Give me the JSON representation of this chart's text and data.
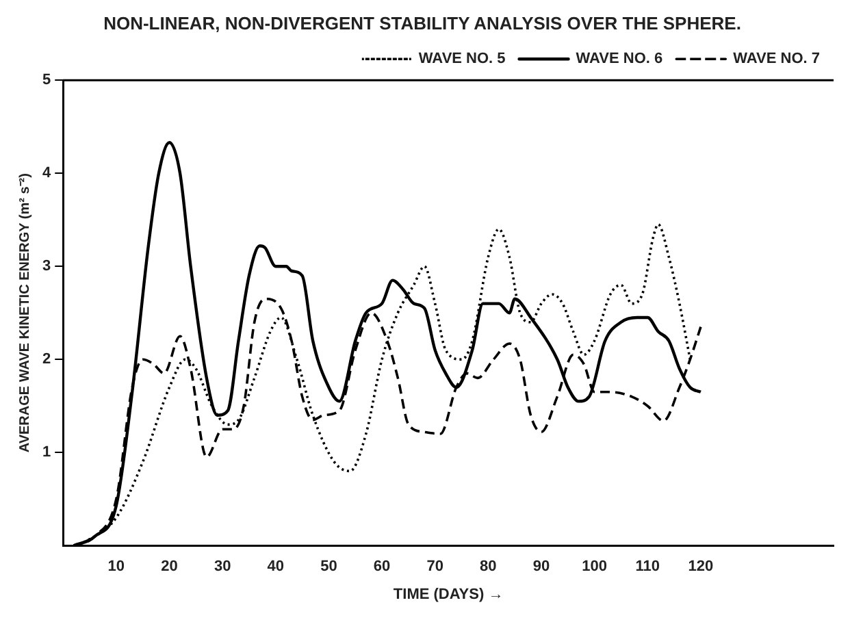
{
  "chart_data": {
    "type": "line",
    "title": "NON-LINEAR, NON-DIVERGENT STABILITY ANALYSIS OVER THE SPHERE.",
    "xlabel": "TIME (DAYS) →",
    "ylabel": "AVERAGE WAVE KINETIC ENERGY (m² s⁻²)",
    "xlim": [
      0,
      145
    ],
    "ylim": [
      0,
      5
    ],
    "xticks": [
      10,
      20,
      30,
      40,
      50,
      60,
      70,
      80,
      90,
      100,
      110,
      120
    ],
    "yticks": [
      1,
      2,
      3,
      4,
      5
    ],
    "grid": false,
    "legend": "top right",
    "marker": "none",
    "series": [
      {
        "name": "WAVE NO. 5",
        "color": "#000000",
        "line_style": "dotted",
        "x": [
          3,
          10,
          15,
          20,
          23,
          25,
          28,
          31,
          33,
          36,
          39,
          41,
          44,
          47,
          51,
          54,
          57,
          60,
          63,
          66,
          68,
          70,
          72,
          75,
          77,
          80,
          82,
          84,
          86,
          88,
          90,
          92,
          94,
          96,
          98,
          100,
          103,
          105,
          107,
          109,
          111,
          112,
          114,
          116,
          118
        ],
        "values": [
          0,
          0.3,
          0.9,
          1.7,
          2.0,
          1.9,
          1.5,
          1.3,
          1.35,
          1.8,
          2.3,
          2.45,
          2.0,
          1.4,
          0.9,
          0.8,
          1.2,
          2.0,
          2.5,
          2.8,
          3.0,
          2.6,
          2.1,
          2.0,
          2.2,
          3.1,
          3.4,
          3.1,
          2.5,
          2.4,
          2.6,
          2.7,
          2.6,
          2.3,
          2.05,
          2.2,
          2.7,
          2.8,
          2.6,
          2.7,
          3.3,
          3.45,
          3.1,
          2.6,
          2.0
        ]
      },
      {
        "name": "WAVE NO. 6",
        "color": "#000000",
        "line_style": "solid",
        "x": [
          2,
          6,
          10,
          13,
          16,
          18,
          20,
          22,
          24,
          27,
          29,
          31,
          33,
          35,
          37,
          38,
          40,
          42,
          43,
          45,
          47,
          50,
          52,
          55,
          57,
          60,
          62,
          64,
          66,
          68,
          70,
          72,
          74,
          77,
          79,
          82,
          84,
          85,
          88,
          93,
          95,
          97,
          99,
          102,
          105,
          108,
          110,
          112,
          114,
          116,
          118,
          120
        ],
        "values": [
          0,
          0.1,
          0.43,
          1.65,
          3.2,
          4.0,
          4.33,
          4.0,
          3.0,
          1.8,
          1.4,
          1.45,
          2.2,
          2.9,
          3.22,
          3.2,
          3.0,
          3.0,
          2.95,
          2.9,
          2.2,
          1.7,
          1.55,
          2.2,
          2.5,
          2.6,
          2.85,
          2.75,
          2.6,
          2.55,
          2.1,
          1.85,
          1.7,
          2.1,
          2.6,
          2.6,
          2.5,
          2.65,
          2.45,
          2.0,
          1.7,
          1.55,
          1.6,
          2.2,
          2.4,
          2.45,
          2.45,
          2.3,
          2.2,
          1.9,
          1.7,
          1.65
        ]
      },
      {
        "name": "WAVE NO. 7",
        "color": "#000000",
        "line_style": "dashed",
        "x": [
          2,
          6,
          10,
          13,
          15,
          17,
          19,
          22,
          24,
          27,
          30,
          32,
          34,
          36,
          38,
          41,
          43,
          45,
          47,
          49,
          52,
          55,
          58,
          61,
          63,
          65,
          68,
          71,
          74,
          76,
          78,
          81,
          84,
          86,
          88,
          90,
          93,
          96,
          98,
          100,
          103,
          107,
          110,
          113,
          116,
          118,
          120
        ],
        "values": [
          0,
          0.1,
          0.5,
          1.7,
          2.0,
          1.95,
          1.85,
          2.25,
          1.9,
          0.95,
          1.25,
          1.25,
          1.5,
          2.4,
          2.65,
          2.55,
          2.2,
          1.6,
          1.35,
          1.4,
          1.45,
          2.1,
          2.5,
          2.2,
          1.8,
          1.3,
          1.22,
          1.2,
          1.7,
          1.85,
          1.8,
          2.0,
          2.17,
          2.0,
          1.4,
          1.22,
          1.6,
          2.05,
          1.95,
          1.65,
          1.65,
          1.6,
          1.5,
          1.34,
          1.7,
          2.0,
          2.35
        ]
      }
    ]
  }
}
